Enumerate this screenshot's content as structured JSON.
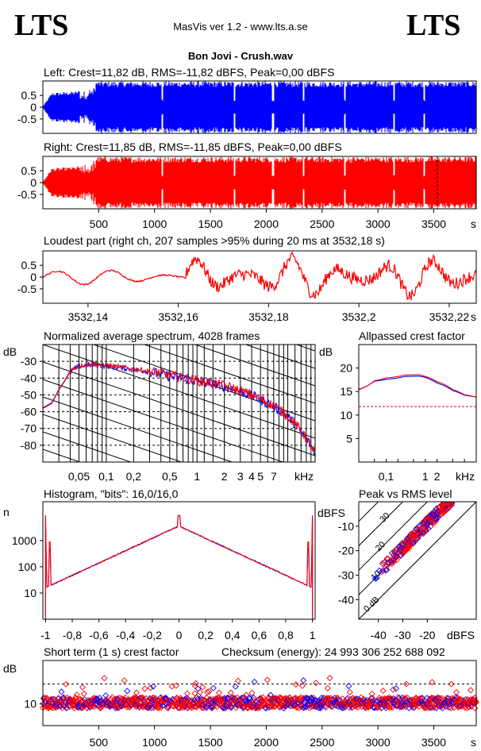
{
  "header": {
    "logo_left": "LTS",
    "logo_right": "LTS",
    "app_title": "MasVis ver 1.2 - www.lts.a.se",
    "file_title": "Bon Jovi - Crush.wav"
  },
  "colors": {
    "left": "#0000ff",
    "right": "#ff0000",
    "grid": "#000000"
  },
  "chart_data": [
    {
      "id": "left_waveform",
      "type": "area",
      "title": "Left: Crest=11,82 dB, RMS=-11,82 dBFS, Peak=0,00 dBFS",
      "yticks": [
        "0.5",
        "0",
        "-0.5"
      ],
      "ylim": [
        -1,
        1
      ],
      "xlim": [
        0,
        3880
      ],
      "envelope": [
        [
          0,
          0.02
        ],
        [
          80,
          0.5
        ],
        [
          300,
          0.55
        ],
        [
          420,
          0.7
        ],
        [
          480,
          0.9
        ],
        [
          3880,
          0.9
        ]
      ]
    },
    {
      "id": "right_waveform",
      "type": "area",
      "title": "Right: Crest=11,85 dB, RMS=-11,85 dBFS, Peak=0,00 dBFS",
      "yticks": [
        "0.5",
        "0",
        "-0.5"
      ],
      "xticks": [
        "500",
        "1000",
        "1500",
        "2000",
        "2500",
        "3000",
        "3500"
      ],
      "xtick_values": [
        500,
        1000,
        1500,
        2000,
        2500,
        3000,
        3500
      ],
      "xunit": "s",
      "xlim": [
        0,
        3880
      ],
      "marker_x": 3532
    },
    {
      "id": "loudest_part",
      "type": "line",
      "title": "Loudest part (right ch, 207 samples >95% during 20 ms at 3532,18 s)",
      "yticks": [
        "0.5",
        "0",
        "-0.5"
      ],
      "xticks": [
        "3532,14",
        "3532,16",
        "3532,18",
        "3532,2",
        "3532,22"
      ],
      "xtick_values": [
        3532.14,
        3532.16,
        3532.18,
        3532.2,
        3532.22
      ],
      "xunit": "s",
      "xlim": [
        3532.13,
        3532.226
      ],
      "ylim": [
        -1,
        1
      ]
    },
    {
      "id": "avg_spectrum",
      "type": "line",
      "title": "Normalized average spectrum, 4028 frames",
      "ylabel": "dB",
      "yticks": [
        "-30",
        "-40",
        "-50",
        "-60",
        "-70",
        "-80"
      ],
      "ytick_values": [
        -30,
        -40,
        -50,
        -60,
        -70,
        -80
      ],
      "xticks": [
        "0,05",
        "0,1",
        "0,2",
        "0,5",
        "1",
        "2",
        "3",
        "4",
        "5",
        "7"
      ],
      "xtick_values": [
        0.05,
        0.1,
        0.2,
        0.5,
        1,
        2,
        3,
        4,
        5,
        7
      ],
      "xunit": "kHz",
      "xlim": [
        0.02,
        20
      ],
      "ylim": [
        -90,
        -20
      ],
      "series": [
        {
          "color": "left",
          "points": [
            [
              0.02,
              -58
            ],
            [
              0.025,
              -55
            ],
            [
              0.03,
              -47
            ],
            [
              0.04,
              -36
            ],
            [
              0.05,
              -33
            ],
            [
              0.07,
              -32
            ],
            [
              0.1,
              -33
            ],
            [
              0.2,
              -35
            ],
            [
              0.5,
              -39
            ],
            [
              1,
              -42
            ],
            [
              2,
              -45
            ],
            [
              3,
              -48
            ],
            [
              5,
              -53
            ],
            [
              7,
              -57
            ],
            [
              10,
              -63
            ],
            [
              14,
              -72
            ],
            [
              20,
              -85
            ]
          ]
        },
        {
          "color": "right",
          "points": [
            [
              0.02,
              -58
            ],
            [
              0.025,
              -55
            ],
            [
              0.03,
              -47
            ],
            [
              0.04,
              -36
            ],
            [
              0.05,
              -33
            ],
            [
              0.07,
              -32
            ],
            [
              0.1,
              -33
            ],
            [
              0.2,
              -35
            ],
            [
              0.5,
              -39
            ],
            [
              1,
              -42
            ],
            [
              2,
              -45
            ],
            [
              3,
              -48
            ],
            [
              5,
              -53
            ],
            [
              7,
              -57
            ],
            [
              10,
              -63
            ],
            [
              14,
              -72
            ],
            [
              20,
              -85
            ]
          ]
        }
      ]
    },
    {
      "id": "allpassed_crest",
      "type": "line",
      "title": "Allpassed crest factor",
      "ylabel": "dB",
      "yticks": [
        "20",
        "15",
        "10",
        "5"
      ],
      "ytick_values": [
        20,
        15,
        10,
        5
      ],
      "xticks": [
        "0,1",
        "1",
        "2"
      ],
      "xtick_values": [
        0.1,
        1,
        2
      ],
      "xunit": "kHz",
      "xlim": [
        0.02,
        20
      ],
      "ylim": [
        0,
        25
      ],
      "ref_line": 11.8,
      "series": [
        {
          "color": "left",
          "points": [
            [
              0.02,
              15.5
            ],
            [
              0.05,
              17.2
            ],
            [
              0.1,
              17.6
            ],
            [
              0.3,
              18.2
            ],
            [
              0.7,
              18.3
            ],
            [
              1,
              18
            ],
            [
              2,
              16.8
            ],
            [
              5,
              15.2
            ],
            [
              10,
              14.2
            ],
            [
              20,
              13.8
            ]
          ]
        },
        {
          "color": "right",
          "points": [
            [
              0.02,
              15.4
            ],
            [
              0.05,
              17.3
            ],
            [
              0.1,
              17.9
            ],
            [
              0.3,
              18.5
            ],
            [
              0.7,
              18.6
            ],
            [
              1,
              18.2
            ],
            [
              2,
              17.1
            ],
            [
              5,
              15.4
            ],
            [
              10,
              14.3
            ],
            [
              20,
              13.8
            ]
          ]
        }
      ]
    },
    {
      "id": "histogram",
      "type": "line",
      "title": "Histogram, \"bits\": 16,0/16,0",
      "ylabel": "n",
      "yticks": [
        "1000",
        "100",
        "10"
      ],
      "ytick_values": [
        1000,
        100,
        10
      ],
      "xticks": [
        "-1",
        "-0,8",
        "-0,6",
        "-0,4",
        "-0,2",
        "0",
        "0,2",
        "0,4",
        "0,6",
        "0,8",
        "1"
      ],
      "xtick_values": [
        -1,
        -0.8,
        -0.6,
        -0.4,
        -0.2,
        0,
        0.2,
        0.4,
        0.6,
        0.8,
        1
      ],
      "xlim": [
        -1.02,
        1.02
      ],
      "ylim_log": [
        1,
        30000
      ]
    },
    {
      "id": "peak_vs_rms",
      "type": "scatter",
      "title": "Peak vs RMS level",
      "ylabel": "dBFS",
      "xlabel": "dBFS",
      "yticks": [
        "-10",
        "-20",
        "-30",
        "-40"
      ],
      "ytick_values": [
        -10,
        -20,
        -30,
        -40
      ],
      "xticks": [
        "-40",
        "-30",
        "-20"
      ],
      "xtick_values": [
        -40,
        -30,
        -20
      ],
      "xlim": [
        -48,
        0
      ],
      "ylim": [
        -48,
        0
      ],
      "diagonals": [
        "40",
        "30",
        "20",
        "10",
        "0 dB"
      ],
      "diagonal_values": [
        40,
        30,
        20,
        10,
        0
      ]
    },
    {
      "id": "short_term_crest",
      "type": "scatter",
      "title": "Short term (1 s) crest factor",
      "ylabel": "dB",
      "yticks": [
        "10"
      ],
      "ytick_values": [
        10
      ],
      "xticks": [
        "500",
        "1000",
        "1500",
        "2000",
        "2500",
        "3000",
        "3500"
      ],
      "xtick_values": [
        500,
        1000,
        1500,
        2000,
        2500,
        3000,
        3500
      ],
      "xunit": "s",
      "xlim": [
        0,
        3880
      ],
      "ylim": [
        4,
        22
      ],
      "ref_line": 15.5
    }
  ],
  "checksum": "Checksum (energy):  24 993 306 252 688 092"
}
